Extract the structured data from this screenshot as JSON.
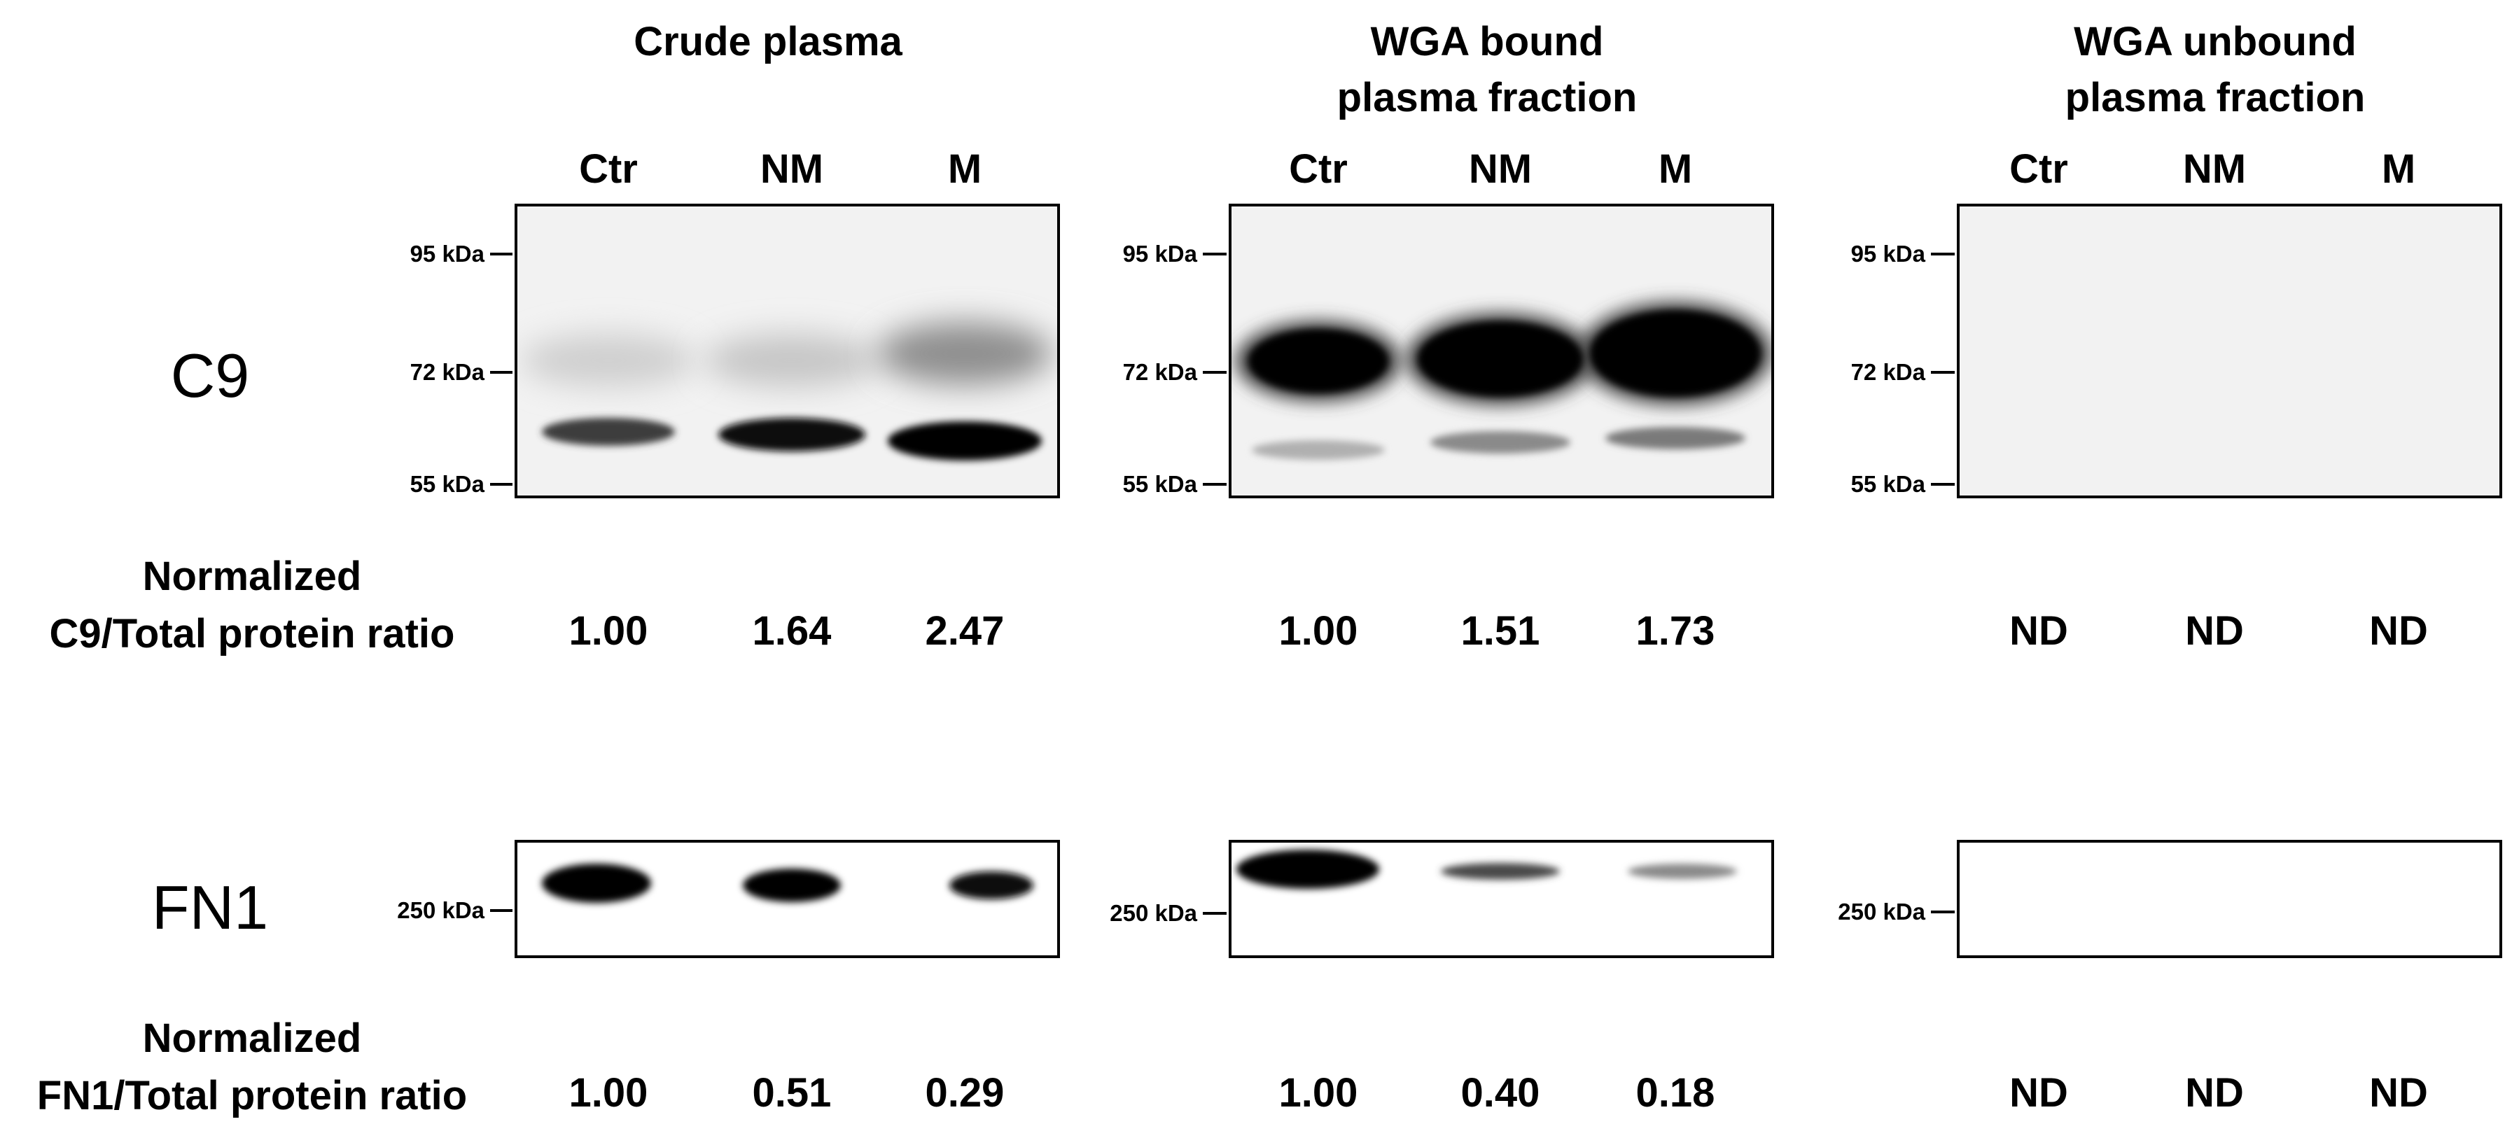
{
  "panels": [
    {
      "title": "Crude plasma",
      "lanes": [
        "Ctr",
        "NM",
        "M"
      ],
      "c9_values": [
        "1.00",
        "1.64",
        "2.47"
      ],
      "fn1_values": [
        "1.00",
        "0.51",
        "0.29"
      ]
    },
    {
      "title": "WGA bound\nplasma fraction",
      "lanes": [
        "Ctr",
        "NM",
        "M"
      ],
      "c9_values": [
        "1.00",
        "1.51",
        "1.73"
      ],
      "fn1_values": [
        "1.00",
        "0.40",
        "0.18"
      ]
    },
    {
      "title": "WGA unbound\nplasma fraction",
      "lanes": [
        "Ctr",
        "NM",
        "M"
      ],
      "c9_values": [
        "ND",
        "ND",
        "ND"
      ],
      "fn1_values": [
        "ND",
        "ND",
        "ND"
      ]
    }
  ],
  "proteins": {
    "c9": "C9",
    "fn1": "FN1"
  },
  "row_labels": {
    "c9": "Normalized\nC9/Total protein ratio",
    "fn1": "Normalized\nFN1/Total protein ratio"
  },
  "markers": {
    "k95": "95 kDa",
    "k72": "72 kDa",
    "k55": "55 kDa",
    "k250": "250 kDa"
  },
  "colors": {
    "band": "#050505",
    "frame": "#000000",
    "background": "#ffffff"
  }
}
